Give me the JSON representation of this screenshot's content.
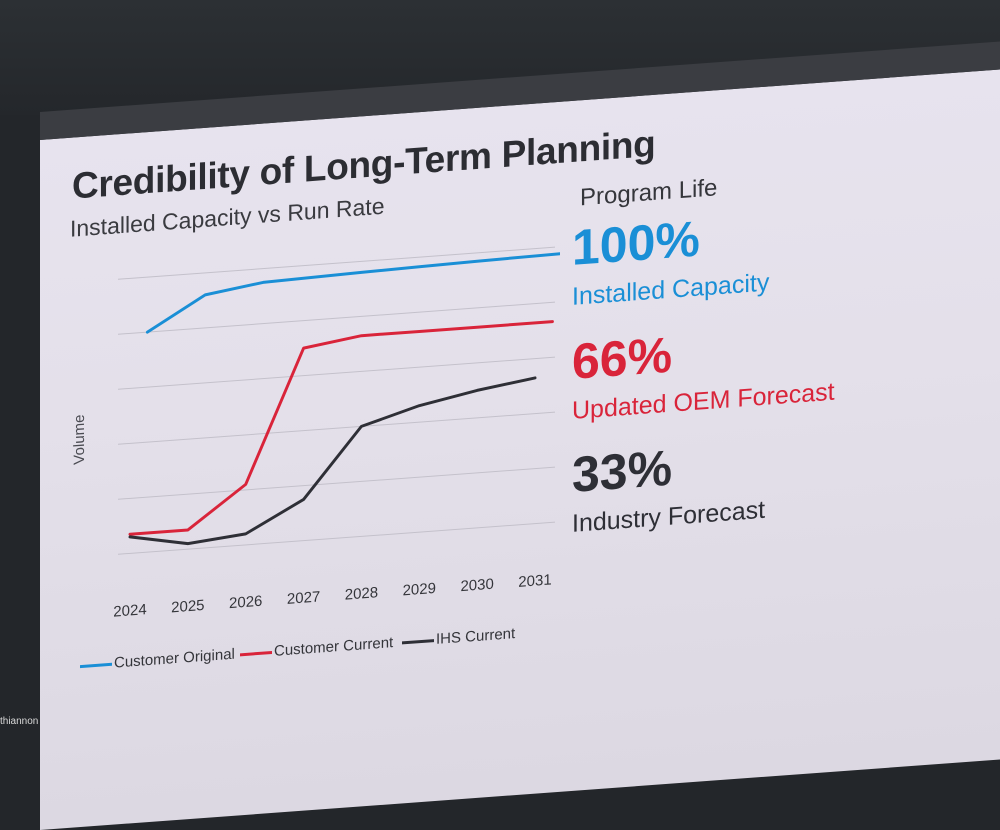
{
  "slide": {
    "title": "Credibility of Long-Term Planning",
    "subtitle": "Installed Capacity vs Run Rate",
    "side_heading": "Program Life"
  },
  "metrics": [
    {
      "value": "100%",
      "label": "Installed Capacity",
      "color": "#1a8fd6"
    },
    {
      "value": "66%",
      "label": "Updated OEM Forecast",
      "color": "#d9243a"
    },
    {
      "value": "33%",
      "label": "Industry Forecast",
      "color": "#2e2f36"
    }
  ],
  "footer": {
    "name": "thiannon"
  },
  "chart_data": {
    "type": "line",
    "title": "Installed Capacity vs Run Rate",
    "xlabel": "",
    "ylabel": "Volume",
    "x": [
      "2024",
      "2025",
      "2026",
      "2027",
      "2028",
      "2029",
      "2030",
      "2031"
    ],
    "ylim": [
      0,
      100
    ],
    "grid": true,
    "legend": "bottom",
    "series": [
      {
        "name": "Customer Original",
        "color": "#1a8fd6",
        "points": [
          [
            0.3,
            80
          ],
          [
            1.3,
            92
          ],
          [
            2.3,
            95
          ],
          [
            4,
            96
          ],
          [
            5,
            96.5
          ],
          [
            6,
            97
          ],
          [
            7.5,
            97.5
          ]
        ]
      },
      {
        "name": "Customer Current",
        "color": "#d9243a",
        "points": [
          [
            0,
            7
          ],
          [
            1,
            7
          ],
          [
            2,
            22
          ],
          [
            3,
            70
          ],
          [
            4,
            73
          ],
          [
            5,
            73
          ],
          [
            6,
            73
          ],
          [
            7.3,
            73
          ]
        ]
      },
      {
        "name": "IHS Current",
        "color": "#2e2f36",
        "points": [
          [
            0,
            6
          ],
          [
            1,
            2
          ],
          [
            2,
            4
          ],
          [
            3,
            15
          ],
          [
            4,
            40
          ],
          [
            5,
            46
          ],
          [
            6,
            50
          ],
          [
            7,
            53
          ]
        ]
      }
    ]
  }
}
